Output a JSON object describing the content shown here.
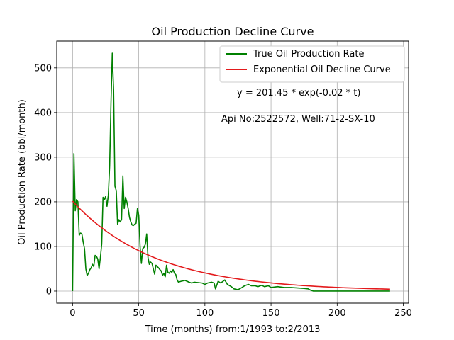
{
  "chart_data": {
    "type": "line",
    "title": "Oil Production Decline Curve",
    "xlabel": "Time (months) from:1/1993 to:2/2013",
    "ylabel": "Oil Production Rate (bbl/month)",
    "xlim": [
      -12,
      254
    ],
    "ylim": [
      -27,
      560
    ],
    "xticks": [
      0,
      50,
      100,
      150,
      200,
      250
    ],
    "yticks": [
      0,
      100,
      200,
      300,
      400,
      500
    ],
    "grid": true,
    "legend_position": "top-right",
    "annotations": [
      "y = 201.45 * exp(-0.02 * t)",
      "Api No:2522572, Well:71-2-SX-10"
    ],
    "series": [
      {
        "name": "True Oil Production Rate",
        "color": "#008000",
        "x": [
          0,
          1,
          2,
          3,
          4,
          5,
          6,
          7,
          8,
          9,
          10,
          11,
          12,
          13,
          14,
          15,
          16,
          17,
          18,
          19,
          20,
          21,
          22,
          23,
          24,
          25,
          26,
          27,
          28,
          29,
          30,
          31,
          32,
          33,
          34,
          35,
          36,
          37,
          38,
          39,
          40,
          41,
          42,
          43,
          44,
          45,
          46,
          47,
          48,
          49,
          50,
          51,
          52,
          53,
          54,
          55,
          56,
          57,
          58,
          59,
          60,
          61,
          62,
          63,
          64,
          65,
          66,
          67,
          68,
          69,
          70,
          71,
          72,
          73,
          74,
          75,
          76,
          77,
          78,
          79,
          80,
          82,
          85,
          88,
          90,
          92,
          95,
          98,
          100,
          102,
          105,
          107,
          108,
          110,
          112,
          115,
          117,
          120,
          122,
          125,
          128,
          130,
          133,
          135,
          138,
          140,
          143,
          145,
          148,
          150,
          155,
          160,
          165,
          170,
          175,
          178,
          180,
          182,
          185,
          190,
          200,
          210,
          220,
          230,
          240
        ],
        "values": [
          0,
          308,
          180,
          205,
          200,
          125,
          130,
          128,
          110,
          95,
          50,
          35,
          40,
          48,
          52,
          60,
          55,
          80,
          78,
          72,
          50,
          75,
          105,
          210,
          205,
          212,
          190,
          215,
          280,
          420,
          533,
          450,
          235,
          225,
          150,
          160,
          155,
          160,
          258,
          185,
          210,
          200,
          185,
          165,
          155,
          148,
          147,
          150,
          152,
          185,
          170,
          100,
          62,
          95,
          98,
          105,
          128,
          75,
          60,
          65,
          62,
          50,
          38,
          58,
          55,
          52,
          48,
          45,
          35,
          40,
          32,
          58,
          42,
          40,
          45,
          42,
          48,
          40,
          37,
          25,
          20,
          22,
          24,
          20,
          18,
          20,
          19,
          18,
          15,
          18,
          20,
          18,
          5,
          22,
          18,
          25,
          15,
          10,
          5,
          3,
          8,
          12,
          15,
          12,
          12,
          10,
          13,
          10,
          12,
          8,
          10,
          8,
          8,
          7,
          6,
          5,
          2,
          0,
          0,
          0,
          0,
          0,
          0,
          0,
          0
        ]
      },
      {
        "name": "Exponential Oil Decline Curve",
        "color": "#e31a1c",
        "formula": {
          "a": 201.45,
          "b": -0.016,
          "x_start": 0,
          "x_end": 240
        }
      }
    ]
  }
}
